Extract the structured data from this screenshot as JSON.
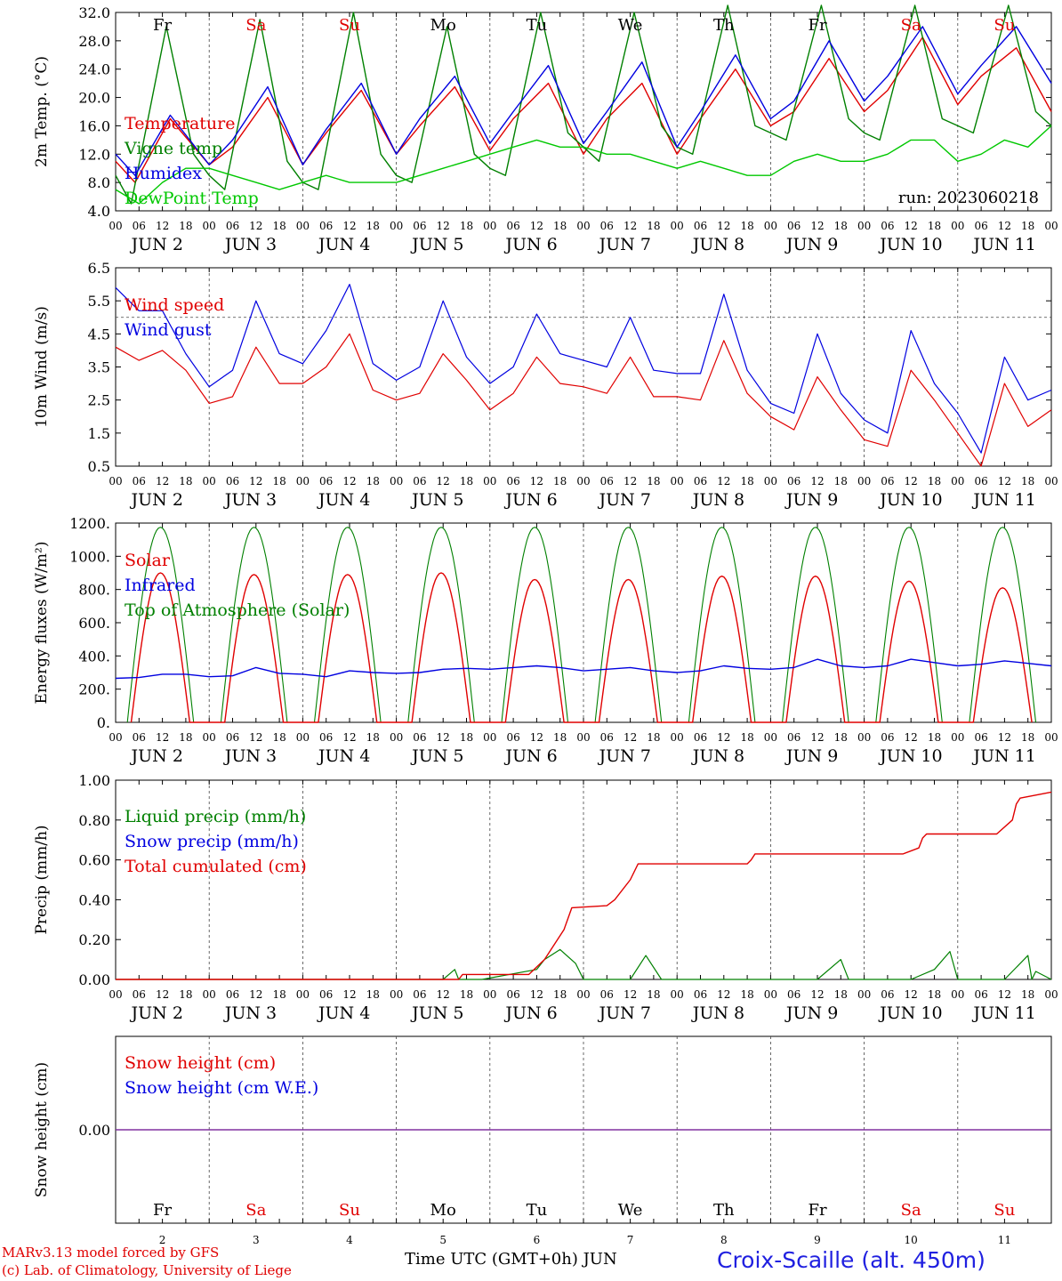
{
  "chart_data": [
    {
      "type": "line",
      "ylabel": "2m Temp. (°C)",
      "ylim": [
        4,
        32
      ],
      "yticks": [
        "32.0",
        "28.0",
        "24.0",
        "20.0",
        "16.0",
        "12.0",
        "8.0",
        "4.0"
      ],
      "day_labels": [
        "Fr",
        "Sa",
        "Su",
        "Mo",
        "Tu",
        "We",
        "Th",
        "Fr",
        "Sa",
        "Su"
      ],
      "annotation": "run: 2023060218",
      "x_unit": "hours since 2023-06-02 00 UTC",
      "series": [
        {
          "name": "Temperature",
          "color": "#e00000",
          "x": [
            0,
            5,
            14,
            24,
            30,
            39,
            48,
            54,
            63,
            72,
            78,
            87,
            96,
            102,
            111,
            120,
            126,
            135,
            144,
            150,
            159,
            168,
            174,
            183,
            192,
            198,
            207,
            216,
            222,
            231,
            240
          ],
          "values": [
            11,
            8,
            17,
            10.5,
            13,
            20,
            10.5,
            15,
            21,
            12,
            16,
            21.5,
            12.5,
            17,
            22,
            12,
            17,
            22,
            12,
            17,
            24,
            16,
            18,
            25.5,
            18,
            21,
            28.5,
            19,
            23,
            27,
            18
          ]
        },
        {
          "name": "Vigne temp",
          "color": "#008000",
          "x": [
            0,
            4,
            13,
            20,
            24,
            28,
            37,
            44,
            48,
            52,
            61,
            68,
            72,
            76,
            85,
            92,
            96,
            100,
            109,
            116,
            120,
            124,
            133,
            140,
            144,
            148,
            157,
            164,
            168,
            172,
            181,
            188,
            192,
            196,
            205,
            212,
            216,
            220,
            229,
            236,
            240
          ],
          "values": [
            9,
            5,
            30,
            12,
            9,
            7,
            31,
            11,
            8,
            7,
            32,
            12,
            9,
            8,
            30,
            12,
            10,
            9,
            32,
            15,
            13,
            11,
            32,
            16,
            13,
            12,
            33,
            16,
            15,
            14,
            33,
            17,
            15,
            14,
            33,
            17,
            16,
            15,
            33,
            18,
            16
          ]
        },
        {
          "name": "Humidex",
          "color": "#0000e0",
          "x": [
            0,
            5,
            14,
            24,
            30,
            39,
            48,
            54,
            63,
            72,
            78,
            87,
            96,
            102,
            111,
            120,
            126,
            135,
            144,
            150,
            159,
            168,
            174,
            183,
            192,
            198,
            207,
            216,
            222,
            231,
            240
          ],
          "values": [
            12,
            9,
            17.5,
            10.5,
            14,
            21.5,
            10.5,
            15.5,
            22,
            12,
            17,
            23,
            13.5,
            18,
            24.5,
            13.5,
            18,
            25,
            13,
            18,
            26,
            17,
            19.5,
            28,
            19.5,
            23,
            30,
            20.5,
            24.5,
            30,
            22
          ]
        },
        {
          "name": "DewPoint Temp",
          "color": "#00c800",
          "x": [
            0,
            6,
            12,
            18,
            24,
            30,
            36,
            42,
            48,
            54,
            60,
            66,
            72,
            78,
            84,
            90,
            96,
            102,
            108,
            114,
            120,
            126,
            132,
            138,
            144,
            150,
            156,
            162,
            168,
            174,
            180,
            186,
            192,
            198,
            204,
            210,
            216,
            222,
            228,
            234,
            240
          ],
          "values": [
            7,
            5,
            8,
            10,
            10,
            9,
            8,
            7,
            8,
            9,
            8,
            8,
            8,
            9,
            10,
            11,
            12,
            13,
            14,
            13,
            13,
            12,
            12,
            11,
            10,
            11,
            10,
            9,
            9,
            11,
            12,
            11,
            11,
            12,
            14,
            14,
            11,
            12,
            14,
            13,
            16
          ]
        }
      ]
    },
    {
      "type": "line",
      "ylabel": "10m Wind (m/s)",
      "ylim": [
        0.5,
        6.5
      ],
      "yticks": [
        "6.5",
        "5.5",
        "4.5",
        "3.5",
        "2.5",
        "1.5",
        "0.5"
      ],
      "reference_line": 5,
      "x_unit": "hours since 2023-06-02 00 UTC",
      "series": [
        {
          "name": "Wind speed",
          "color": "#e00000",
          "x": [
            0,
            6,
            12,
            18,
            24,
            30,
            36,
            42,
            48,
            54,
            60,
            66,
            72,
            78,
            84,
            90,
            96,
            102,
            108,
            114,
            120,
            126,
            132,
            138,
            144,
            150,
            156,
            162,
            168,
            174,
            180,
            186,
            192,
            198,
            204,
            210,
            216,
            222,
            228,
            234,
            240
          ],
          "values": [
            4.1,
            3.7,
            4,
            3.4,
            2.4,
            2.6,
            4.1,
            3,
            3,
            3.5,
            4.5,
            2.8,
            2.5,
            2.7,
            3.9,
            3.1,
            2.2,
            2.7,
            3.8,
            3,
            2.9,
            2.7,
            3.8,
            2.6,
            2.6,
            2.5,
            4.3,
            2.7,
            2,
            1.6,
            3.2,
            2.2,
            1.3,
            1.1,
            3.4,
            2.5,
            1.5,
            0.5,
            3,
            1.7,
            2.2
          ]
        },
        {
          "name": "Wind gust",
          "color": "#0000e0",
          "x": [
            0,
            6,
            12,
            18,
            24,
            30,
            36,
            42,
            48,
            54,
            60,
            66,
            72,
            78,
            84,
            90,
            96,
            102,
            108,
            114,
            120,
            126,
            132,
            138,
            144,
            150,
            156,
            162,
            168,
            174,
            180,
            186,
            192,
            198,
            204,
            210,
            216,
            222,
            228,
            234,
            240
          ],
          "values": [
            5.9,
            5.2,
            5.2,
            3.9,
            2.9,
            3.4,
            5.5,
            3.9,
            3.6,
            4.6,
            6,
            3.6,
            3.1,
            3.5,
            5.5,
            3.8,
            3,
            3.5,
            5.1,
            3.9,
            3.7,
            3.5,
            5,
            3.4,
            3.3,
            3.3,
            5.7,
            3.4,
            2.4,
            2.1,
            4.5,
            2.7,
            1.9,
            1.5,
            4.6,
            3,
            2.1,
            0.9,
            3.8,
            2.5,
            2.8
          ]
        }
      ]
    },
    {
      "type": "line",
      "ylabel": "Energy fluxes (W/m²)",
      "ylim": [
        0,
        1200
      ],
      "yticks": [
        "1200.",
        "1000.",
        "800.",
        "600.",
        "400.",
        "200.",
        "0."
      ],
      "x_unit": "hours since 2023-06-02 00 UTC",
      "series": [
        {
          "name": "Solar",
          "color": "#e00000",
          "peaks": [
            900,
            890,
            890,
            900,
            860,
            860,
            880,
            880,
            850,
            810
          ]
        },
        {
          "name": "Infrared",
          "color": "#0000e0",
          "x": [
            0,
            6,
            12,
            18,
            24,
            30,
            36,
            42,
            48,
            54,
            60,
            66,
            72,
            78,
            84,
            90,
            96,
            102,
            108,
            114,
            120,
            126,
            132,
            138,
            144,
            150,
            156,
            162,
            168,
            174,
            180,
            186,
            192,
            198,
            204,
            210,
            216,
            222,
            228,
            234,
            240
          ],
          "values": [
            265,
            270,
            290,
            290,
            275,
            280,
            330,
            295,
            290,
            275,
            310,
            300,
            295,
            300,
            320,
            325,
            320,
            330,
            340,
            330,
            310,
            320,
            330,
            310,
            300,
            310,
            340,
            325,
            320,
            330,
            380,
            340,
            330,
            340,
            380,
            360,
            340,
            350,
            370,
            355,
            340
          ]
        },
        {
          "name": "Top of Atmosphere (Solar)",
          "color": "#008000",
          "peak": 1175
        }
      ]
    },
    {
      "type": "line",
      "ylabel": "Precip (mm/h)",
      "ylim": [
        0,
        1
      ],
      "yticks": [
        "1.00",
        "0.80",
        "0.60",
        "0.40",
        "0.20",
        "0.00"
      ],
      "x_unit": "hours since 2023-06-02 00 UTC",
      "series": [
        {
          "name": "Liquid precip (mm/h)",
          "color": "#008000",
          "x": [
            0,
            84,
            87,
            88,
            94,
            108,
            110,
            114,
            118,
            120,
            132,
            136,
            140,
            144,
            180,
            186,
            187,
            188,
            204,
            210,
            214,
            216,
            228,
            234,
            235,
            236,
            240
          ],
          "values": [
            0,
            0,
            0.05,
            0,
            0,
            0.05,
            0.1,
            0.15,
            0.08,
            0,
            0,
            0.12,
            0,
            0,
            0,
            0.1,
            0.05,
            0,
            0,
            0.05,
            0.14,
            0,
            0,
            0.12,
            0,
            0.04,
            0
          ]
        },
        {
          "name": "Snow precip (mm/h)",
          "color": "#0000e0",
          "values": [
            0
          ]
        },
        {
          "name": "Total cumulated (cm)",
          "color": "#e00000",
          "x": [
            0,
            88,
            89,
            106,
            110,
            115,
            117,
            126,
            128,
            132,
            134,
            154,
            162,
            163,
            164,
            202,
            206,
            207,
            208,
            226,
            230,
            231,
            232,
            240
          ],
          "values": [
            0,
            0,
            0.025,
            0.025,
            0.1,
            0.25,
            0.36,
            0.37,
            0.4,
            0.5,
            0.58,
            0.58,
            0.58,
            0.6,
            0.63,
            0.63,
            0.66,
            0.71,
            0.73,
            0.73,
            0.8,
            0.88,
            0.91,
            0.94
          ]
        }
      ]
    },
    {
      "type": "line",
      "ylabel": "Snow height (cm)",
      "yticks": [
        "0.00"
      ],
      "series": [
        {
          "name": "Snow height (cm)",
          "color": "#e00000",
          "values": [
            0
          ]
        },
        {
          "name": "Snow height (cm W.E.)",
          "color": "#0000e0",
          "values": [
            0
          ]
        }
      ]
    }
  ],
  "x_axis": {
    "hour_ticks": [
      "00",
      "06",
      "12",
      "18"
    ],
    "last_tick": "00",
    "dates": [
      "JUN  2",
      "JUN  3",
      "JUN  4",
      "JUN  5",
      "JUN  6",
      "JUN  7",
      "JUN  8",
      "JUN  9",
      "JUN 10",
      "JUN 11"
    ],
    "weekdays": [
      "Fr",
      "Sa",
      "Su",
      "Mo",
      "Tu",
      "We",
      "Th",
      "Fr",
      "Sa",
      "Su"
    ],
    "weekend_color": "#e00000",
    "day_numbers": [
      "2",
      "3",
      "4",
      "5",
      "6",
      "7",
      "8",
      "9",
      "10",
      "11"
    ]
  },
  "footer": {
    "credit_line1": "MARv3.13 model forced by GFS",
    "credit_line2": "(c) Lab. of Climatology, University of Liege",
    "xlabel": "Time UTC (GMT+0h) JUN",
    "station": "Croix-Scaille (alt. 450m)"
  }
}
